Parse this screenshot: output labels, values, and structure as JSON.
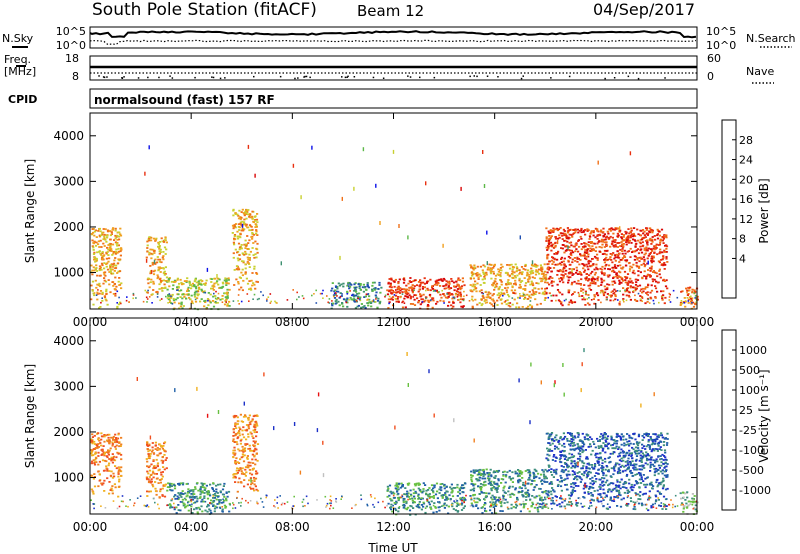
{
  "header": {
    "station": "South Pole Station (fitACF)",
    "beam": "Beam 12",
    "date": "04/Sep/2017"
  },
  "top_panels": {
    "nsky_label": "N.Sky",
    "nsearch_label": "N.Search",
    "nsky_ticks": [
      "10^5",
      "10^0"
    ],
    "nsky_right_ticks": [
      "10^5",
      "10^0"
    ],
    "freq_label_1": "Freq.",
    "freq_label_2": "[MHz]",
    "freq_ticks": [
      "18",
      "8"
    ],
    "nave_label": "Nave",
    "nave_ticks": [
      "60",
      "0"
    ],
    "cpid_label": "CPID",
    "cpid_text": "normalsound (fast) 157 RF"
  },
  "colorbars": {
    "power": {
      "label": "Power [dB]",
      "ticks": [
        "28",
        "24",
        "20",
        "16",
        "12",
        "8",
        "4"
      ],
      "colors": [
        "#0b10e8",
        "#1f4fb0",
        "#3d9070",
        "#5db848",
        "#c8d030",
        "#f0a020",
        "#f07018",
        "#e83010",
        "#d80808"
      ]
    },
    "velocity": {
      "label": "Velocity [m s⁻¹]",
      "ticks": [
        "1000",
        "500",
        "100",
        "25",
        "-25",
        "-100",
        "-500",
        "-1000"
      ],
      "colors": [
        "#1c30c8",
        "#2060a8",
        "#3c8e7c",
        "#68c040",
        "#c0c0c0",
        "#f0b020",
        "#f08020",
        "#f05020",
        "#e81010"
      ]
    }
  },
  "chart_data": [
    {
      "type": "heatmap",
      "title": "",
      "xlabel": "",
      "ylabel": "Slant Range [km]",
      "x_ticks": [
        "00:00",
        "04:00",
        "08:00",
        "12:00",
        "16:00",
        "20:00",
        "00:00"
      ],
      "y_ticks": [
        "4000",
        "3000",
        "2000",
        "1000"
      ],
      "ylim": [
        200,
        4500
      ],
      "xlim_hours": [
        0,
        24
      ],
      "colorbar": "Power [dB]",
      "regions": [
        {
          "t0": 0.0,
          "t1": 1.2,
          "r0": 200,
          "r1": 2000,
          "level": 5
        },
        {
          "t0": 2.2,
          "t1": 3.0,
          "r0": 500,
          "r1": 1800,
          "level": 5
        },
        {
          "t0": 5.6,
          "t1": 6.6,
          "r0": 600,
          "r1": 2400,
          "level": 5
        },
        {
          "t0": 3.0,
          "t1": 5.5,
          "r0": 200,
          "r1": 900,
          "level": 4
        },
        {
          "t0": 9.5,
          "t1": 11.5,
          "r0": 200,
          "r1": 800,
          "level": 2
        },
        {
          "t0": 11.7,
          "t1": 14.8,
          "r0": 200,
          "r1": 900,
          "level": 7
        },
        {
          "t0": 15.0,
          "t1": 18.0,
          "r0": 200,
          "r1": 1200,
          "level": 5
        },
        {
          "t0": 18.0,
          "t1": 22.8,
          "r0": 300,
          "r1": 2000,
          "level": 7
        },
        {
          "t0": 23.3,
          "t1": 24.0,
          "r0": 200,
          "r1": 700,
          "level": 6
        }
      ]
    },
    {
      "type": "heatmap",
      "title": "",
      "xlabel": "Time UT",
      "ylabel": "Slant Range [km]",
      "x_ticks": [
        "00:00",
        "04:00",
        "08:00",
        "12:00",
        "16:00",
        "20:00",
        "00:00"
      ],
      "y_ticks": [
        "4000",
        "3000",
        "2000",
        "1000"
      ],
      "ylim": [
        200,
        4500
      ],
      "xlim_hours": [
        0,
        24
      ],
      "colorbar": "Velocity [m s⁻¹]",
      "regions": [
        {
          "t0": 0.0,
          "t1": 1.2,
          "r0": 600,
          "r1": 2000,
          "level": 6
        },
        {
          "t0": 2.2,
          "t1": 3.0,
          "r0": 500,
          "r1": 1800,
          "level": 6
        },
        {
          "t0": 5.6,
          "t1": 6.6,
          "r0": 600,
          "r1": 2400,
          "level": 6
        },
        {
          "t0": 3.0,
          "t1": 5.5,
          "r0": 200,
          "r1": 900,
          "level": 2
        },
        {
          "t0": 11.7,
          "t1": 14.8,
          "r0": 200,
          "r1": 900,
          "level": 2
        },
        {
          "t0": 15.0,
          "t1": 18.0,
          "r0": 200,
          "r1": 1200,
          "level": 2
        },
        {
          "t0": 18.0,
          "t1": 22.8,
          "r0": 300,
          "r1": 2000,
          "level": 1
        },
        {
          "t0": 23.3,
          "t1": 24.0,
          "r0": 200,
          "r1": 700,
          "level": 3
        }
      ]
    }
  ]
}
